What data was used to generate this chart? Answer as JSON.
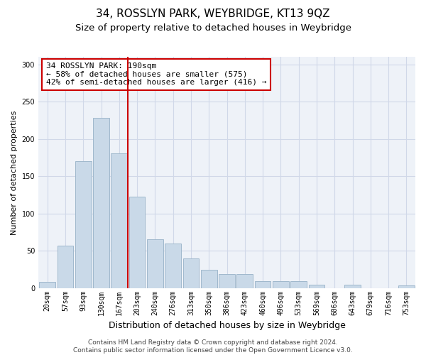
{
  "title": "34, ROSSLYN PARK, WEYBRIDGE, KT13 9QZ",
  "subtitle": "Size of property relative to detached houses in Weybridge",
  "xlabel": "Distribution of detached houses by size in Weybridge",
  "ylabel": "Number of detached properties",
  "categories": [
    "20sqm",
    "57sqm",
    "93sqm",
    "130sqm",
    "167sqm",
    "203sqm",
    "240sqm",
    "276sqm",
    "313sqm",
    "350sqm",
    "386sqm",
    "423sqm",
    "460sqm",
    "496sqm",
    "533sqm",
    "569sqm",
    "606sqm",
    "643sqm",
    "679sqm",
    "716sqm",
    "753sqm"
  ],
  "values": [
    8,
    57,
    170,
    228,
    181,
    122,
    65,
    60,
    40,
    24,
    19,
    19,
    9,
    9,
    9,
    4,
    0,
    4,
    0,
    0,
    3
  ],
  "bar_color": "#c9d9e8",
  "bar_edge_color": "#a0b8cc",
  "grid_color": "#d0d8e8",
  "background_color": "#eef2f8",
  "vline_color": "#cc0000",
  "annotation_text": "34 ROSSLYN PARK: 190sqm\n← 58% of detached houses are smaller (575)\n42% of semi-detached houses are larger (416) →",
  "annotation_box_color": "#ffffff",
  "annotation_border_color": "#cc0000",
  "footer_line1": "Contains HM Land Registry data © Crown copyright and database right 2024.",
  "footer_line2": "Contains public sector information licensed under the Open Government Licence v3.0.",
  "ylim": [
    0,
    310
  ],
  "title_fontsize": 11,
  "subtitle_fontsize": 9.5,
  "xlabel_fontsize": 9,
  "ylabel_fontsize": 8,
  "tick_fontsize": 7,
  "annotation_fontsize": 8,
  "footer_fontsize": 6.5
}
